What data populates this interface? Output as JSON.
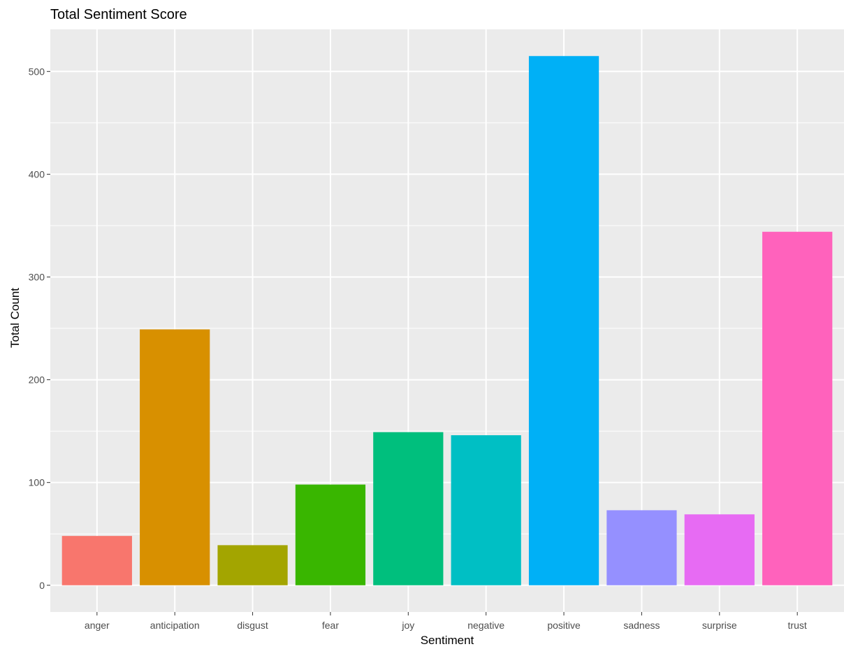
{
  "chart_data": {
    "type": "bar",
    "title": "Total Sentiment Score",
    "xlabel": "Sentiment",
    "ylabel": "Total Count",
    "categories": [
      "anger",
      "anticipation",
      "disgust",
      "fear",
      "joy",
      "negative",
      "positive",
      "sadness",
      "surprise",
      "trust"
    ],
    "values": [
      48,
      249,
      39,
      98,
      149,
      146,
      515,
      73,
      69,
      344
    ],
    "colors": [
      "#F8766D",
      "#D89000",
      "#A3A500",
      "#39B600",
      "#00BF7D",
      "#00BFC4",
      "#00B0F6",
      "#9590FF",
      "#E76BF3",
      "#FF62BC"
    ],
    "yticks": [
      0,
      100,
      200,
      300,
      400,
      500
    ],
    "ylim": [
      -26,
      541
    ],
    "grid": true,
    "legend": "none",
    "panel_background": "#EBEBEB",
    "grid_color": "#FFFFFF"
  }
}
